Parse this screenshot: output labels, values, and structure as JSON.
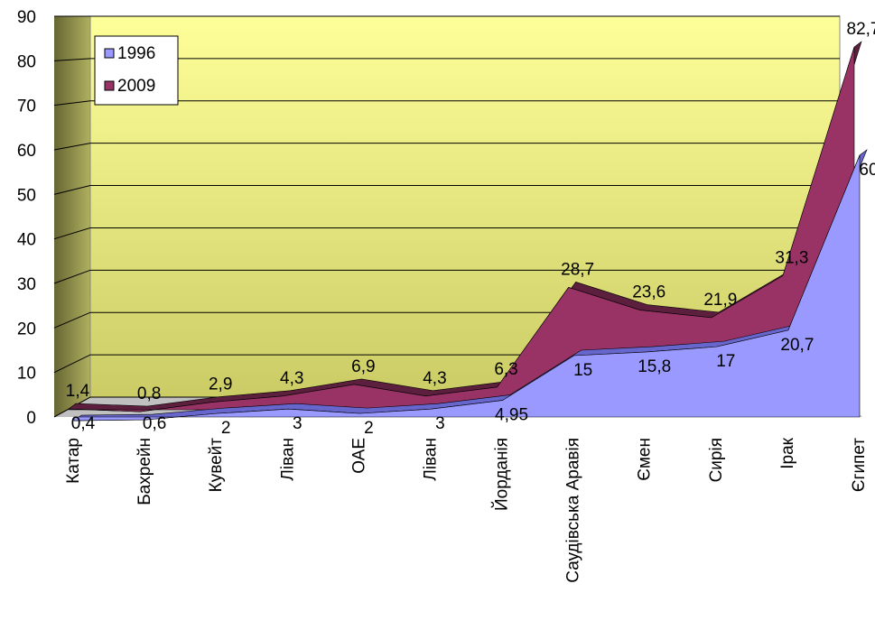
{
  "chart_data": {
    "type": "area3d",
    "categories": [
      "Катар",
      "Бахрейн",
      "Кувейт",
      "Ліван",
      "ОАЕ",
      "Ліван",
      "Йорданія",
      "Саудівська Аравія",
      "Ємен",
      "Сирія",
      "Ірак",
      "Єгипет"
    ],
    "series": [
      {
        "name": "1996",
        "color": "#9999ff",
        "values": [
          0.4,
          0.6,
          2,
          3,
          2,
          3,
          4.95,
          15,
          15.8,
          17,
          20.7,
          60
        ],
        "value_labels": [
          "0,4",
          "0,6",
          "2",
          "3",
          "2",
          "3",
          "4,95",
          "15",
          "15,8",
          "17",
          "20,7",
          "60"
        ]
      },
      {
        "name": "2009",
        "color": "#993366",
        "values": [
          1.4,
          0.8,
          2.9,
          4.3,
          6.9,
          4.3,
          6.3,
          28.7,
          23.6,
          21.9,
          31.3,
          82.7
        ],
        "value_labels": [
          "1,4",
          "0,8",
          "2,9",
          "4,3",
          "6,9",
          "4,3",
          "6,3",
          "28,7",
          "23,6",
          "21,9",
          "31,3",
          "82,7"
        ]
      }
    ],
    "ylim": [
      0,
      90
    ],
    "yticks": [
      0,
      10,
      20,
      30,
      40,
      50,
      60,
      70,
      80,
      90
    ],
    "grid": true,
    "legend": "top-left"
  }
}
